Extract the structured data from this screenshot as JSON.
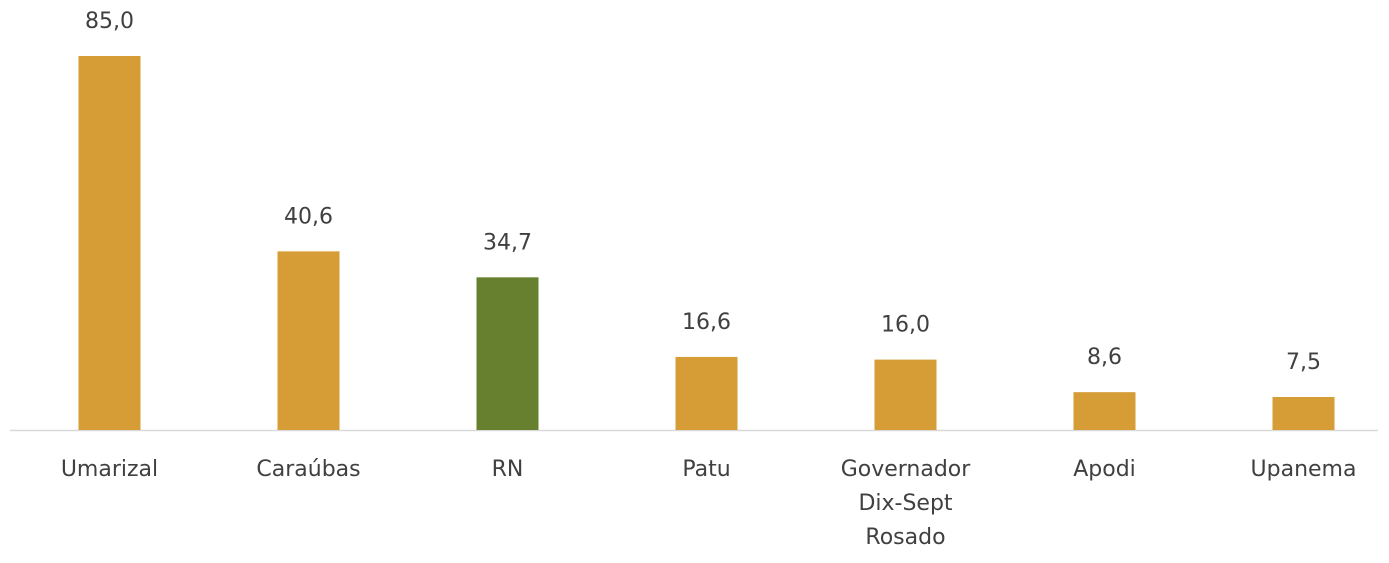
{
  "chart_data": {
    "type": "bar",
    "categories": [
      "Umarizal",
      "Caraúbas",
      "RN",
      "Patu",
      "Governador Dix-Sept Rosado",
      "Apodi",
      "Upanema"
    ],
    "values": [
      85.0,
      40.6,
      34.7,
      16.6,
      16.0,
      8.6,
      7.5
    ],
    "value_labels": [
      "85,0",
      "40,6",
      "34,7",
      "16,6",
      "16,0",
      "8,6",
      "7,5"
    ],
    "colors": [
      "#d69d36",
      "#d69d36",
      "#66802f",
      "#d69d36",
      "#d69d36",
      "#d69d36",
      "#d69d36"
    ]
  }
}
